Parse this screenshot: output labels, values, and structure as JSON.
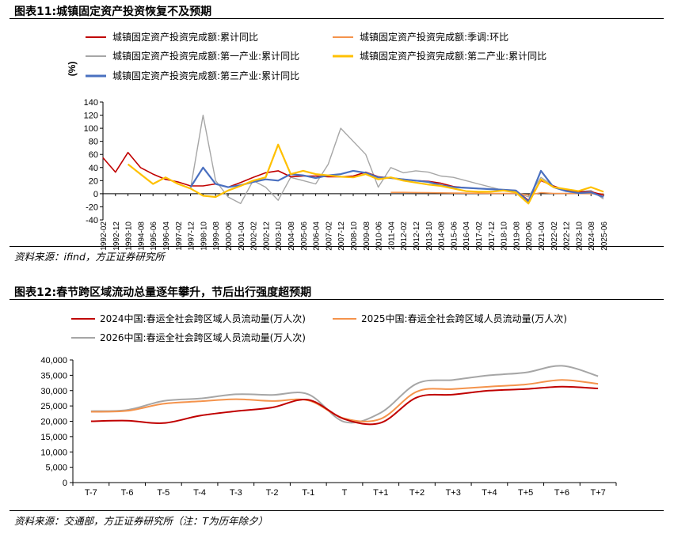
{
  "figure1": {
    "title": "图表11:城镇固定资产投资恢复不及预期",
    "source": "资料来源：ifind，方正证券研究所"
  },
  "figure2": {
    "title": "图表12:春节跨区域流动总量逐年攀升，节后出行强度超预期",
    "source": "资料来源：交通部，方正证券研究所（注：T为历年除夕）"
  },
  "chart_data": [
    {
      "type": "line",
      "ylabel": "(%)",
      "ylim": [
        -40,
        140
      ],
      "yticks": [
        -40,
        -20,
        0,
        20,
        40,
        60,
        80,
        100,
        120,
        140
      ],
      "x_tick_labels": [
        "1992-02",
        "1992-12",
        "1993-10",
        "1994-08",
        "1995-06",
        "1996-04",
        "1997-02",
        "1997-12",
        "1998-10",
        "1999-08",
        "2000-06",
        "2001-04",
        "2002-02",
        "2002-12",
        "2003-10",
        "2004-08",
        "2005-06",
        "2006-04",
        "2007-02",
        "2007-12",
        "2008-10",
        "2009-08",
        "2010-06",
        "2011-04",
        "2012-02",
        "2012-12",
        "2013-10",
        "2014-08",
        "2015-06",
        "2016-04",
        "2017-02",
        "2017-12",
        "2018-10",
        "2019-08",
        "2020-06",
        "2021-04",
        "2022-02",
        "2022-12",
        "2023-10",
        "2024-08",
        "2025-06"
      ],
      "series": [
        {
          "name": "城镇固定资产投资完成额:累计同比",
          "color": "#c00000",
          "values": [
            55,
            33,
            63,
            40,
            30,
            22,
            18,
            12,
            12,
            15,
            10,
            17,
            25,
            32,
            35,
            26,
            27,
            27,
            26,
            26,
            27,
            33,
            26,
            24,
            22,
            20,
            19,
            16,
            11,
            9,
            8,
            7,
            6,
            5,
            -10,
            20,
            12,
            5,
            3,
            3,
            -2
          ]
        },
        {
          "name": "城镇固定资产投资完成额:季调:环比",
          "color": "#f4934c",
          "values": [
            null,
            null,
            null,
            null,
            null,
            null,
            null,
            null,
            null,
            null,
            null,
            null,
            null,
            null,
            null,
            null,
            null,
            null,
            null,
            null,
            null,
            null,
            null,
            2,
            2,
            1.8,
            1.6,
            1.3,
            1,
            0.8,
            0.7,
            0.5,
            0.5,
            0.4,
            -2,
            1.5,
            0.5,
            0.3,
            0.2,
            0.1,
            -0.5
          ]
        },
        {
          "name": "城镇固定资产投资完成额:第一产业:累计同比",
          "color": "#a6a6a6",
          "values": [
            null,
            null,
            null,
            null,
            null,
            null,
            null,
            8,
            120,
            20,
            -5,
            -15,
            20,
            10,
            -10,
            25,
            20,
            15,
            45,
            100,
            80,
            60,
            10,
            40,
            32,
            35,
            33,
            27,
            25,
            20,
            15,
            10,
            5,
            2,
            -5,
            25,
            12,
            5,
            3,
            5,
            -8
          ]
        },
        {
          "name": "城镇固定资产投资完成额:第二产业:累计同比",
          "color": "#ffc000",
          "values": [
            null,
            null,
            45,
            30,
            15,
            25,
            15,
            8,
            -3,
            -5,
            5,
            12,
            20,
            25,
            75,
            30,
            35,
            30,
            28,
            26,
            25,
            30,
            22,
            25,
            20,
            17,
            14,
            12,
            8,
            4,
            3,
            3,
            5,
            2,
            -15,
            22,
            10,
            7,
            4,
            10,
            3
          ]
        },
        {
          "name": "城镇固定资产投资完成额:第三产业:累计同比",
          "color": "#4a70c0",
          "values": [
            null,
            null,
            null,
            null,
            null,
            null,
            null,
            10,
            40,
            15,
            10,
            13,
            18,
            22,
            20,
            30,
            28,
            24,
            28,
            30,
            35,
            32,
            25,
            24,
            22,
            20,
            18,
            13,
            10,
            9,
            8,
            7,
            6,
            5,
            -12,
            35,
            10,
            4,
            1,
            2,
            -5
          ]
        }
      ]
    },
    {
      "type": "line",
      "ylim": [
        0,
        40000
      ],
      "yticks": [
        0,
        5000,
        10000,
        15000,
        20000,
        25000,
        30000,
        35000,
        40000
      ],
      "categories": [
        "T-7",
        "T-6",
        "T-5",
        "T-4",
        "T-3",
        "T-2",
        "T-1",
        "T",
        "T+1",
        "T+2",
        "T+3",
        "T+4",
        "T+5",
        "T+6",
        "T+7"
      ],
      "series": [
        {
          "name": "2024中国:春运全社会跨区域人员流动量(万人次)",
          "color": "#c00000",
          "values": [
            20000,
            20200,
            19400,
            21800,
            23300,
            24500,
            27000,
            20700,
            19500,
            27800,
            28700,
            30000,
            30500,
            31300,
            30700
          ]
        },
        {
          "name": "2025中国:春运全社会跨区域人员流动量(万人次)",
          "color": "#f4934c",
          "values": [
            23100,
            23400,
            25700,
            26500,
            27200,
            26600,
            26800,
            20900,
            20800,
            29700,
            30500,
            31300,
            32000,
            33500,
            32200
          ]
        },
        {
          "name": "2026中国:春运全社会跨区域人员流动量(万人次)",
          "color": "#a6a6a6",
          "values": [
            23300,
            23700,
            26600,
            27400,
            28800,
            28600,
            28800,
            19800,
            22800,
            32300,
            33500,
            35000,
            35900,
            38100,
            34700
          ]
        }
      ]
    }
  ]
}
